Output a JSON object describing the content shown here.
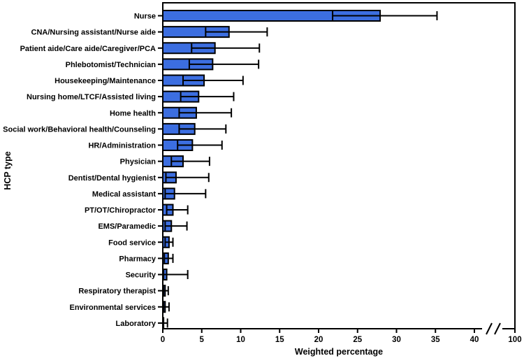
{
  "figure": {
    "title": "",
    "xlabel": "Weighted percentage",
    "ylabel": "HCP type",
    "colors": {
      "bar_fill": "#3C6EE0",
      "bar_stroke": "#000000",
      "axis": "#000000",
      "background": "#FFFFFF"
    }
  },
  "chart_data": {
    "type": "bar",
    "orientation": "horizontal",
    "title": "",
    "xlabel": "Weighted percentage",
    "ylabel": "HCP type",
    "grid": false,
    "error_bars": true,
    "x_ticks": [
      0,
      5,
      10,
      15,
      20,
      25,
      30,
      35,
      40,
      100
    ],
    "x_axis_break_between": [
      40,
      100
    ],
    "x_axis_linear_max": 40,
    "categories": [
      "Nurse",
      "CNA/Nursing assistant/Nurse aide",
      "Patient aide/Care aide/Caregiver/PCA",
      "Phlebotomist/Technician",
      "Housekeeping/Maintenance",
      "Nursing home/LTCF/Assisted living",
      "Home health",
      "Social work/Behavioral health/Counseling",
      "HR/Administration",
      "Physician",
      "Dentist/Dental hygienist",
      "Medical assistant",
      "PT/OT/Chiropractor",
      "EMS/Paramedic",
      "Food service",
      "Pharmacy",
      "Security",
      "Respiratory therapist",
      "Environmental services",
      "Laboratory"
    ],
    "series": [
      {
        "name": "Weighted percentage",
        "values": [
          27.9,
          8.5,
          6.7,
          6.4,
          5.3,
          4.6,
          4.3,
          4.1,
          3.8,
          2.6,
          1.7,
          1.5,
          1.3,
          1.1,
          0.8,
          0.7,
          0.5,
          0.3,
          0.3,
          0.1
        ],
        "ci_lower": [
          21.8,
          5.5,
          3.7,
          3.4,
          2.6,
          2.3,
          2.1,
          2.1,
          1.9,
          1.1,
          0.4,
          0.3,
          0.5,
          0.3,
          0.3,
          0.2,
          0.1,
          0.1,
          0.1,
          0.0
        ],
        "ci_upper": [
          35.2,
          13.4,
          12.4,
          12.3,
          10.3,
          9.1,
          8.8,
          8.1,
          7.6,
          6.0,
          5.9,
          5.5,
          3.2,
          3.1,
          1.3,
          1.3,
          3.2,
          0.7,
          0.8,
          0.6
        ]
      }
    ]
  }
}
